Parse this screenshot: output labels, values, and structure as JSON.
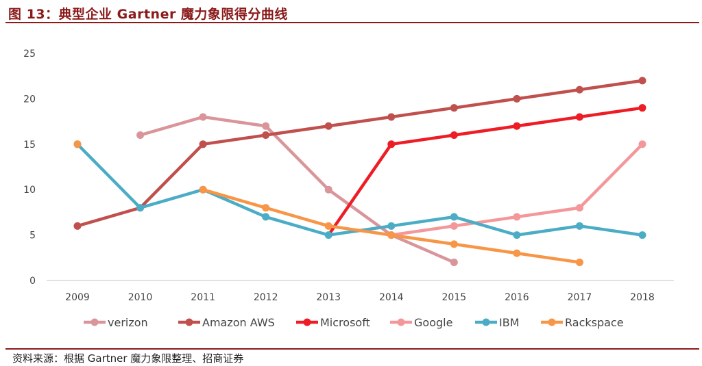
{
  "header": {
    "title": "图 13：典型企业 Gartner 魔力象限得分曲线"
  },
  "footer": {
    "source": "资料来源：根据 Gartner 魔力象限整理、招商证券"
  },
  "chart_data": {
    "type": "line",
    "title": "图 13：典型企业 Gartner 魔力象限得分曲线",
    "xlabel": "",
    "ylabel": "",
    "x": [
      "2009",
      "2010",
      "2011",
      "2012",
      "2013",
      "2014",
      "2015",
      "2016",
      "2017",
      "2018"
    ],
    "x_tick_labels": [
      "2009",
      "2010",
      "2011",
      "2012",
      "2013",
      "2014",
      "2015",
      "2016",
      "2017",
      "2018"
    ],
    "y_tick_labels": [
      "0",
      "5",
      "10",
      "15",
      "20",
      "25"
    ],
    "ylim": [
      0,
      25
    ],
    "grid": false,
    "legend_position": "bottom",
    "series": [
      {
        "name": "verizon",
        "color": "#D9959A",
        "values": [
          null,
          16,
          18,
          17,
          10,
          5,
          2,
          null,
          null,
          null
        ]
      },
      {
        "name": "Amazon AWS",
        "color": "#C0504D",
        "values": [
          6,
          8,
          15,
          16,
          17,
          18,
          19,
          20,
          21,
          22
        ]
      },
      {
        "name": "Microsoft",
        "color": "#EE1C25",
        "values": [
          null,
          null,
          null,
          null,
          5,
          15,
          16,
          17,
          18,
          19
        ],
        "no_marker_first": true
      },
      {
        "name": "Google",
        "color": "#F4979A",
        "values": [
          null,
          null,
          null,
          null,
          null,
          5,
          6,
          7,
          8,
          15
        ]
      },
      {
        "name": "IBM",
        "color": "#4BACC6",
        "values": [
          15,
          8,
          10,
          7,
          5,
          6,
          7,
          5,
          6,
          5
        ]
      },
      {
        "name": "Rackspace",
        "color": "#F79646",
        "values": [
          15,
          null,
          10,
          8,
          6,
          5,
          4,
          3,
          2,
          null
        ]
      }
    ]
  }
}
